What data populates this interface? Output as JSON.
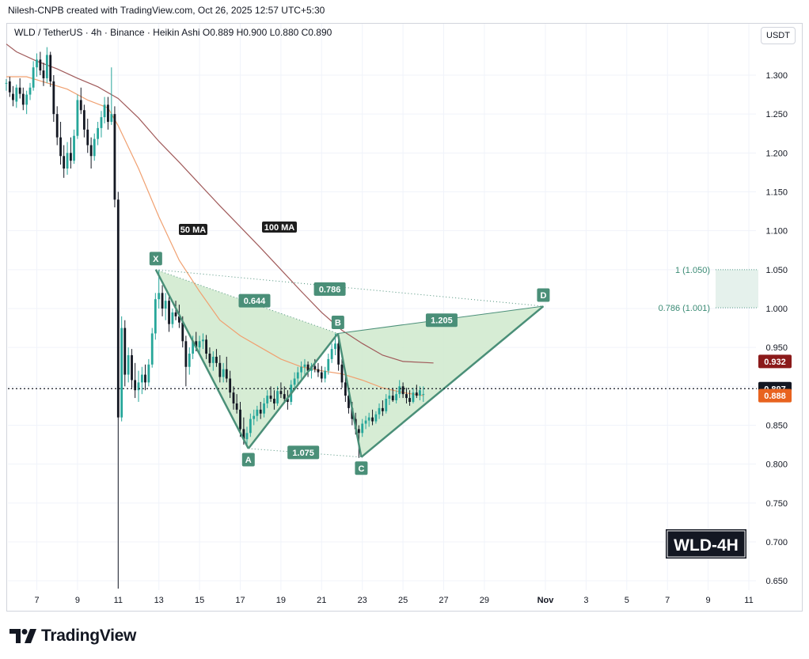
{
  "header": {
    "attribution": "Nilesh-CNPB created with TradingView.com, Oct 26, 2025 12:57 UTC+5:30"
  },
  "chart_header": {
    "symbol_line": "WLD / TetherUS · 4h · Binance · Heikin Ashi O0.889 H0.900 L0.880 C0.890",
    "unit": "USDT"
  },
  "chart_data": {
    "type": "candlestick",
    "title": "WLD-4H",
    "symbol": "WLD / TetherUS",
    "interval": "4h",
    "exchange": "Binance",
    "candle_style": "Heikin Ashi",
    "ohlc": {
      "open": 0.889,
      "high": 0.9,
      "low": 0.88,
      "close": 0.89
    },
    "y_axis": {
      "ticks": [
        "1.300",
        "1.250",
        "1.200",
        "1.150",
        "1.100",
        "1.050",
        "1.000",
        "0.950",
        "0.900",
        "0.850",
        "0.800",
        "0.750",
        "0.700",
        "0.650"
      ],
      "range": [
        0.64,
        1.34
      ]
    },
    "x_axis": {
      "ticks": [
        "7",
        "9",
        "11",
        "13",
        "15",
        "17",
        "19",
        "21",
        "23",
        "25",
        "27",
        "29",
        "Nov",
        "3",
        "5",
        "7",
        "9",
        "11"
      ]
    },
    "candles": [
      [
        5.5,
        1.29,
        1.295,
        1.28,
        1.29
      ],
      [
        5.67,
        1.292,
        1.298,
        1.272,
        1.278
      ],
      [
        5.83,
        1.276,
        1.286,
        1.26,
        1.268
      ],
      [
        6.0,
        1.266,
        1.288,
        1.258,
        1.284
      ],
      [
        6.17,
        1.284,
        1.296,
        1.27,
        1.276
      ],
      [
        6.33,
        1.276,
        1.284,
        1.255,
        1.262
      ],
      [
        6.5,
        1.262,
        1.28,
        1.25,
        1.275
      ],
      [
        6.67,
        1.275,
        1.29,
        1.268,
        1.284
      ],
      [
        6.83,
        1.284,
        1.318,
        1.28,
        1.31
      ],
      [
        7.0,
        1.31,
        1.328,
        1.298,
        1.32
      ],
      [
        7.17,
        1.32,
        1.33,
        1.3,
        1.306
      ],
      [
        7.33,
        1.306,
        1.316,
        1.286,
        1.296
      ],
      [
        7.5,
        1.296,
        1.336,
        1.29,
        1.326
      ],
      [
        7.67,
        1.326,
        1.33,
        1.285,
        1.292
      ],
      [
        7.83,
        1.292,
        1.3,
        1.24,
        1.25
      ],
      [
        8.0,
        1.25,
        1.26,
        1.21,
        1.22
      ],
      [
        8.17,
        1.22,
        1.24,
        1.185,
        1.196
      ],
      [
        8.33,
        1.196,
        1.21,
        1.168,
        1.18
      ],
      [
        8.5,
        1.18,
        1.214,
        1.172,
        1.2
      ],
      [
        8.67,
        1.2,
        1.22,
        1.18,
        1.19
      ],
      [
        8.83,
        1.19,
        1.23,
        1.186,
        1.222
      ],
      [
        9.0,
        1.222,
        1.275,
        1.218,
        1.268
      ],
      [
        9.17,
        1.268,
        1.284,
        1.25,
        1.255
      ],
      [
        9.33,
        1.255,
        1.262,
        1.22,
        1.23
      ],
      [
        9.5,
        1.23,
        1.244,
        1.2,
        1.21
      ],
      [
        9.67,
        1.21,
        1.22,
        1.18,
        1.196
      ],
      [
        9.83,
        1.196,
        1.225,
        1.19,
        1.218
      ],
      [
        10.0,
        1.218,
        1.24,
        1.21,
        1.232
      ],
      [
        10.17,
        1.232,
        1.254,
        1.22,
        1.246
      ],
      [
        10.33,
        1.246,
        1.272,
        1.238,
        1.262
      ],
      [
        10.5,
        1.262,
        1.272,
        1.23,
        1.24
      ],
      [
        10.67,
        1.24,
        1.31,
        1.236,
        1.25
      ],
      [
        10.83,
        1.25,
        1.26,
        1.13,
        1.14
      ],
      [
        11.0,
        1.14,
        1.15,
        0.64,
        0.86
      ],
      [
        11.17,
        0.86,
        0.99,
        0.855,
        0.975
      ],
      [
        11.33,
        0.975,
        0.985,
        0.9,
        0.915
      ],
      [
        11.5,
        0.915,
        0.95,
        0.905,
        0.94
      ],
      [
        11.67,
        0.94,
        0.948,
        0.898,
        0.908
      ],
      [
        11.83,
        0.908,
        0.93,
        0.885,
        0.895
      ],
      [
        12.0,
        0.895,
        0.92,
        0.88,
        0.905
      ],
      [
        12.17,
        0.905,
        0.925,
        0.89,
        0.915
      ],
      [
        12.33,
        0.915,
        0.928,
        0.895,
        0.905
      ],
      [
        12.5,
        0.905,
        0.935,
        0.9,
        0.928
      ],
      [
        12.67,
        0.928,
        0.975,
        0.924,
        0.968
      ],
      [
        12.83,
        0.968,
        1.02,
        0.96,
        1.012
      ],
      [
        13.0,
        1.012,
        1.05,
        1.0,
        1.02
      ],
      [
        13.17,
        1.02,
        1.03,
        0.99,
        1.0
      ],
      [
        13.33,
        1.0,
        1.02,
        0.985,
        1.01
      ],
      [
        13.5,
        1.01,
        1.015,
        0.97,
        0.98
      ],
      [
        13.67,
        0.98,
        1.0,
        0.975,
        0.995
      ],
      [
        13.83,
        0.995,
        1.01,
        0.985,
        0.99
      ],
      [
        14.0,
        0.99,
        1.005,
        0.975,
        0.982
      ],
      [
        14.17,
        0.982,
        0.99,
        0.95,
        0.958
      ],
      [
        14.33,
        0.958,
        0.965,
        0.9,
        0.925
      ],
      [
        14.5,
        0.925,
        0.95,
        0.915,
        0.942
      ],
      [
        14.67,
        0.942,
        0.965,
        0.935,
        0.958
      ],
      [
        14.83,
        0.958,
        0.97,
        0.945,
        0.95
      ],
      [
        15.0,
        0.95,
        0.965,
        0.94,
        0.958
      ],
      [
        15.17,
        0.958,
        0.968,
        0.948,
        0.96
      ],
      [
        15.33,
        0.96,
        0.966,
        0.935,
        0.942
      ],
      [
        15.5,
        0.942,
        0.95,
        0.925,
        0.93
      ],
      [
        15.67,
        0.93,
        0.945,
        0.92,
        0.938
      ],
      [
        15.83,
        0.938,
        0.948,
        0.925,
        0.93
      ],
      [
        16.0,
        0.93,
        0.94,
        0.905,
        0.912
      ],
      [
        16.17,
        0.912,
        0.93,
        0.905,
        0.922
      ],
      [
        16.33,
        0.922,
        0.938,
        0.905,
        0.91
      ],
      [
        16.5,
        0.91,
        0.92,
        0.885,
        0.892
      ],
      [
        16.67,
        0.892,
        0.9,
        0.87,
        0.878
      ],
      [
        16.83,
        0.878,
        0.89,
        0.865,
        0.87
      ],
      [
        17.0,
        0.87,
        0.88,
        0.835,
        0.845
      ],
      [
        17.17,
        0.845,
        0.86,
        0.825,
        0.832
      ],
      [
        17.33,
        0.832,
        0.848,
        0.822,
        0.84
      ],
      [
        17.5,
        0.84,
        0.865,
        0.835,
        0.858
      ],
      [
        17.67,
        0.858,
        0.87,
        0.85,
        0.862
      ],
      [
        17.83,
        0.862,
        0.875,
        0.855,
        0.87
      ],
      [
        18.0,
        0.87,
        0.88,
        0.858,
        0.865
      ],
      [
        18.17,
        0.865,
        0.885,
        0.86,
        0.878
      ],
      [
        18.33,
        0.878,
        0.895,
        0.872,
        0.888
      ],
      [
        18.5,
        0.888,
        0.9,
        0.88,
        0.884
      ],
      [
        18.67,
        0.884,
        0.895,
        0.87,
        0.878
      ],
      [
        18.83,
        0.878,
        0.9,
        0.875,
        0.894
      ],
      [
        19.0,
        0.894,
        0.905,
        0.885,
        0.89
      ],
      [
        19.17,
        0.89,
        0.9,
        0.878,
        0.884
      ],
      [
        19.33,
        0.884,
        0.895,
        0.87,
        0.88
      ],
      [
        19.5,
        0.88,
        0.908,
        0.876,
        0.902
      ],
      [
        19.67,
        0.902,
        0.918,
        0.895,
        0.91
      ],
      [
        19.83,
        0.91,
        0.925,
        0.902,
        0.918
      ],
      [
        20.0,
        0.918,
        0.932,
        0.91,
        0.925
      ],
      [
        20.17,
        0.925,
        0.935,
        0.915,
        0.928
      ],
      [
        20.33,
        0.928,
        0.932,
        0.912,
        0.92
      ],
      [
        20.5,
        0.92,
        0.93,
        0.91,
        0.926
      ],
      [
        20.67,
        0.926,
        0.935,
        0.918,
        0.922
      ],
      [
        20.83,
        0.922,
        0.93,
        0.912,
        0.918
      ],
      [
        21.0,
        0.918,
        0.926,
        0.905,
        0.91
      ],
      [
        21.17,
        0.91,
        0.925,
        0.905,
        0.92
      ],
      [
        21.33,
        0.92,
        0.942,
        0.915,
        0.935
      ],
      [
        21.5,
        0.935,
        0.955,
        0.93,
        0.948
      ],
      [
        21.67,
        0.948,
        0.968,
        0.94,
        0.955
      ],
      [
        21.83,
        0.955,
        0.96,
        0.92,
        0.928
      ],
      [
        22.0,
        0.928,
        0.935,
        0.898,
        0.905
      ],
      [
        22.17,
        0.905,
        0.915,
        0.88,
        0.888
      ],
      [
        22.33,
        0.888,
        0.895,
        0.865,
        0.872
      ],
      [
        22.5,
        0.872,
        0.88,
        0.85,
        0.858
      ],
      [
        22.67,
        0.858,
        0.866,
        0.838,
        0.845
      ],
      [
        22.83,
        0.845,
        0.85,
        0.808,
        0.84
      ],
      [
        23.0,
        0.84,
        0.858,
        0.835,
        0.852
      ],
      [
        23.17,
        0.852,
        0.862,
        0.845,
        0.856
      ],
      [
        23.33,
        0.856,
        0.866,
        0.848,
        0.86
      ],
      [
        23.5,
        0.86,
        0.87,
        0.85,
        0.855
      ],
      [
        23.67,
        0.855,
        0.868,
        0.852,
        0.864
      ],
      [
        23.83,
        0.864,
        0.878,
        0.858,
        0.872
      ],
      [
        24.0,
        0.872,
        0.882,
        0.862,
        0.868
      ],
      [
        24.17,
        0.868,
        0.89,
        0.865,
        0.884
      ],
      [
        24.33,
        0.884,
        0.896,
        0.876,
        0.888
      ],
      [
        24.5,
        0.888,
        0.898,
        0.88,
        0.882
      ],
      [
        24.67,
        0.882,
        0.895,
        0.878,
        0.89
      ],
      [
        24.83,
        0.89,
        0.908,
        0.885,
        0.9
      ],
      [
        25.0,
        0.9,
        0.905,
        0.885,
        0.89
      ],
      [
        25.17,
        0.89,
        0.898,
        0.878,
        0.885
      ],
      [
        25.33,
        0.885,
        0.895,
        0.875,
        0.88
      ],
      [
        25.5,
        0.88,
        0.898,
        0.878,
        0.892
      ],
      [
        25.67,
        0.892,
        0.902,
        0.885,
        0.888
      ],
      [
        25.83,
        0.888,
        0.9,
        0.882,
        0.895
      ],
      [
        26.0,
        0.889,
        0.9,
        0.88,
        0.89
      ]
    ],
    "moving_averages": [
      {
        "name": "50 MA",
        "color": "#f0a070",
        "points": [
          [
            5.5,
            1.298
          ],
          [
            6.5,
            1.298
          ],
          [
            7.5,
            1.29
          ],
          [
            8.5,
            1.282
          ],
          [
            9.5,
            1.268
          ],
          [
            10.5,
            1.258
          ],
          [
            11.0,
            1.235
          ],
          [
            12.0,
            1.18
          ],
          [
            13.0,
            1.118
          ],
          [
            14.0,
            1.062
          ],
          [
            15.0,
            1.022
          ],
          [
            16.0,
            0.985
          ],
          [
            17.0,
            0.965
          ],
          [
            18.0,
            0.95
          ],
          [
            19.0,
            0.935
          ],
          [
            20.0,
            0.925
          ],
          [
            21.0,
            0.92
          ],
          [
            22.0,
            0.916
          ],
          [
            23.0,
            0.908
          ],
          [
            24.0,
            0.898
          ],
          [
            25.0,
            0.892
          ],
          [
            26.0,
            0.888
          ]
        ]
      },
      {
        "name": "100 MA",
        "color": "#a05a5a",
        "points": [
          [
            5.5,
            1.34
          ],
          [
            6.0,
            1.33
          ],
          [
            7.0,
            1.318
          ],
          [
            8.0,
            1.308
          ],
          [
            9.0,
            1.296
          ],
          [
            10.0,
            1.285
          ],
          [
            11.0,
            1.27
          ],
          [
            12.0,
            1.245
          ],
          [
            13.0,
            1.215
          ],
          [
            14.0,
            1.188
          ],
          [
            15.0,
            1.16
          ],
          [
            16.0,
            1.132
          ],
          [
            17.0,
            1.105
          ],
          [
            18.0,
            1.078
          ],
          [
            19.0,
            1.05
          ],
          [
            20.0,
            1.022
          ],
          [
            21.0,
            0.995
          ],
          [
            22.0,
            0.972
          ],
          [
            23.0,
            0.955
          ],
          [
            24.0,
            0.94
          ],
          [
            25.0,
            0.932
          ],
          [
            26.5,
            0.93
          ]
        ]
      }
    ],
    "pattern": {
      "points": [
        {
          "label": "X",
          "x": 12.85,
          "y": 1.05
        },
        {
          "label": "A",
          "x": 17.4,
          "y": 0.82
        },
        {
          "label": "B",
          "x": 21.8,
          "y": 0.968
        },
        {
          "label": "C",
          "x": 22.95,
          "y": 0.809
        },
        {
          "label": "D",
          "x": 31.9,
          "y": 1.003
        }
      ],
      "ratios": [
        {
          "label": "0.644",
          "x": 17.7,
          "y": 1.01
        },
        {
          "label": "0.786",
          "x": 21.4,
          "y": 1.025
        },
        {
          "label": "1.205",
          "x": 26.9,
          "y": 0.985
        },
        {
          "label": "1.075",
          "x": 20.1,
          "y": 0.815
        }
      ]
    },
    "fib_levels": [
      {
        "label": "1 (1.050)",
        "value": 1.05
      },
      {
        "label": "0.786 (1.001)",
        "value": 1.001
      }
    ],
    "price_labels": [
      {
        "text": "0.932",
        "value": 0.932,
        "color": "#8b1a1a"
      },
      {
        "text": "0.897",
        "value": 0.897,
        "color": "#131722"
      },
      {
        "text": "0.888",
        "value": 0.888,
        "color": "#e8631f"
      }
    ],
    "current_price": 0.897,
    "colors": {
      "up": "#26a69a",
      "down": "#131722",
      "pattern": "#4a8f78",
      "pattern_fill": "#cfe9cc"
    }
  },
  "brand": {
    "name": "TradingView"
  }
}
